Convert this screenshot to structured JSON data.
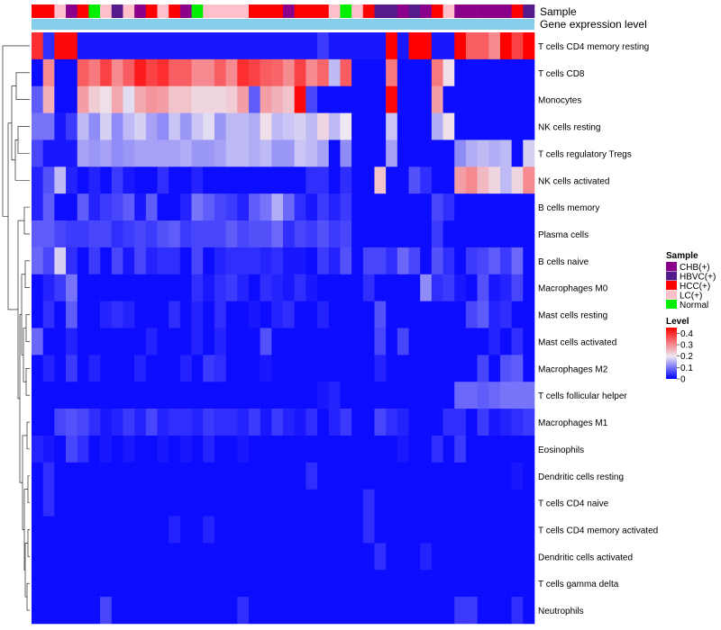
{
  "chart_data": {
    "type": "heatmap",
    "title": "",
    "annotation_rows": [
      "Sample",
      "Gene expression level"
    ],
    "rows": [
      "T cells CD4 memory resting",
      "T cells CD8",
      "Monocytes",
      "NK cells resting",
      "T cells regulatory  Tregs",
      "NK cells activated",
      "B cells memory",
      "Plasma cells",
      "B cells naive",
      "Macrophages M0",
      "Mast cells resting",
      "Mast cells activated",
      "Macrophages M2",
      "T cells follicular helper",
      "Macrophages M1",
      "Eosinophils",
      "Dendritic cells resting",
      "T cells CD4 naive",
      "T cells CD4 memory activated",
      "Dendritic cells activated",
      "T cells gamma delta",
      "Neutrophils"
    ],
    "columns": 44,
    "sample_classes": [
      "CHB(+)",
      "HBVC(+)",
      "HCC(+)",
      "LC(+)",
      "Normal"
    ],
    "sample_colors": {
      "CHB(+)": "#8B008B",
      "HBVC(+)": "#551A8B",
      "HCC(+)": "#FF0000",
      "LC(+)": "#FFC0CB",
      "Normal": "#00EE00"
    },
    "column_samples": [
      "HCC(+)",
      "HCC(+)",
      "LC(+)",
      "CHB(+)",
      "HCC(+)",
      "Normal",
      "LC(+)",
      "HBVC(+)",
      "LC(+)",
      "CHB(+)",
      "HCC(+)",
      "LC(+)",
      "HCC(+)",
      "CHB(+)",
      "Normal",
      "LC(+)",
      "LC(+)",
      "LC(+)",
      "LC(+)",
      "HCC(+)",
      "HCC(+)",
      "HCC(+)",
      "CHB(+)",
      "HCC(+)",
      "HCC(+)",
      "HCC(+)",
      "LC(+)",
      "Normal",
      "LC(+)",
      "HCC(+)",
      "HBVC(+)",
      "HBVC(+)",
      "CHB(+)",
      "HBVC(+)",
      "CHB(+)",
      "HCC(+)",
      "LC(+)",
      "CHB(+)",
      "CHB(+)",
      "CHB(+)",
      "CHB(+)",
      "CHB(+)",
      "HCC(+)",
      "HBVC(+)"
    ],
    "gene_expression_color": "#87CEEB",
    "values": [
      [
        0.4,
        0.04,
        0.44,
        0.44,
        0.02,
        0.02,
        0.02,
        0.02,
        0.02,
        0.02,
        0.02,
        0.02,
        0.02,
        0.02,
        0.02,
        0.02,
        0.02,
        0.02,
        0.02,
        0.02,
        0.02,
        0.02,
        0.02,
        0.02,
        0.02,
        0.05,
        0.02,
        0.02,
        0.02,
        0.02,
        0.02,
        0.45,
        0.02,
        0.45,
        0.45,
        0.02,
        0.02,
        0.45,
        0.35,
        0.35,
        0.3,
        0.45,
        0.38,
        0.45
      ],
      [
        0.01,
        0.3,
        0.01,
        0.01,
        0.35,
        0.32,
        0.38,
        0.3,
        0.35,
        0.42,
        0.38,
        0.4,
        0.35,
        0.35,
        0.3,
        0.3,
        0.35,
        0.3,
        0.4,
        0.38,
        0.35,
        0.34,
        0.3,
        0.38,
        0.3,
        0.34,
        0.16,
        0.35,
        0.01,
        0.01,
        0.01,
        0.32,
        0.01,
        0.01,
        0.01,
        0.32,
        0.21,
        0.01,
        0.01,
        0.01,
        0.01,
        0.01,
        0.01,
        0.01
      ],
      [
        0.08,
        0.26,
        0.01,
        0.01,
        0.28,
        0.23,
        0.21,
        0.27,
        0.19,
        0.27,
        0.29,
        0.28,
        0.24,
        0.24,
        0.22,
        0.22,
        0.22,
        0.23,
        0.28,
        0.08,
        0.28,
        0.26,
        0.24,
        0.44,
        0.06,
        0.01,
        0.01,
        0.01,
        0.01,
        0.01,
        0.01,
        0.44,
        0.01,
        0.01,
        0.01,
        0.28,
        0.01,
        0.01,
        0.01,
        0.01,
        0.01,
        0.01,
        0.01,
        0.01
      ],
      [
        0.1,
        0.1,
        0.02,
        0.05,
        0.16,
        0.12,
        0.18,
        0.12,
        0.16,
        0.18,
        0.14,
        0.12,
        0.17,
        0.13,
        0.17,
        0.19,
        0.13,
        0.16,
        0.16,
        0.15,
        0.21,
        0.16,
        0.17,
        0.18,
        0.16,
        0.22,
        0.16,
        0.2,
        0.01,
        0.01,
        0.01,
        0.17,
        0.01,
        0.01,
        0.01,
        0.15,
        0.21,
        0.01,
        0.01,
        0.01,
        0.01,
        0.01,
        0.01,
        0.01
      ],
      [
        0.06,
        0.02,
        0.02,
        0.02,
        0.14,
        0.13,
        0.14,
        0.12,
        0.13,
        0.14,
        0.14,
        0.14,
        0.14,
        0.15,
        0.13,
        0.13,
        0.14,
        0.16,
        0.16,
        0.15,
        0.16,
        0.13,
        0.13,
        0.17,
        0.16,
        0.14,
        0.01,
        0.12,
        0.01,
        0.01,
        0.01,
        0.14,
        0.01,
        0.01,
        0.01,
        0.01,
        0.01,
        0.12,
        0.15,
        0.16,
        0.15,
        0.16,
        0.01,
        0.18
      ],
      [
        0.03,
        0.07,
        0.16,
        0.03,
        0.01,
        0.03,
        0.01,
        0.05,
        0.02,
        0.01,
        0.01,
        0.04,
        0.01,
        0.01,
        0.03,
        0.01,
        0.01,
        0.01,
        0.01,
        0.01,
        0.01,
        0.01,
        0.01,
        0.01,
        0.04,
        0.04,
        0.01,
        0.04,
        0.01,
        0.01,
        0.24,
        0.01,
        0.01,
        0.07,
        0.04,
        0.01,
        0.01,
        0.28,
        0.3,
        0.25,
        0.22,
        0.16,
        0.22,
        0.3
      ],
      [
        0.03,
        0.08,
        0.01,
        0.01,
        0.08,
        0.03,
        0.05,
        0.06,
        0.08,
        0.02,
        0.08,
        0.01,
        0.01,
        0.03,
        0.1,
        0.08,
        0.06,
        0.05,
        0.03,
        0.08,
        0.1,
        0.15,
        0.09,
        0.04,
        0.02,
        0.05,
        0.03,
        0.05,
        0.01,
        0.01,
        0.01,
        0.01,
        0.01,
        0.01,
        0.01,
        0.06,
        0.04,
        0.01,
        0.01,
        0.01,
        0.01,
        0.01,
        0.01,
        0.01
      ],
      [
        0.08,
        0.08,
        0.06,
        0.05,
        0.05,
        0.06,
        0.06,
        0.04,
        0.05,
        0.06,
        0.05,
        0.07,
        0.08,
        0.05,
        0.06,
        0.06,
        0.06,
        0.08,
        0.06,
        0.07,
        0.07,
        0.09,
        0.04,
        0.06,
        0.05,
        0.07,
        0.05,
        0.06,
        0.01,
        0.01,
        0.01,
        0.01,
        0.01,
        0.01,
        0.01,
        0.05,
        0.01,
        0.01,
        0.01,
        0.01,
        0.01,
        0.01,
        0.01,
        0.01
      ],
      [
        0.09,
        0.06,
        0.18,
        0.04,
        0.01,
        0.05,
        0.01,
        0.06,
        0.02,
        0.06,
        0.03,
        0.04,
        0.04,
        0.01,
        0.06,
        0.01,
        0.03,
        0.04,
        0.04,
        0.04,
        0.03,
        0.04,
        0.02,
        0.02,
        0.01,
        0.05,
        0.03,
        0.07,
        0.01,
        0.06,
        0.06,
        0.04,
        0.09,
        0.06,
        0.01,
        0.07,
        0.04,
        0.01,
        0.05,
        0.06,
        0.08,
        0.05,
        0.09,
        0.01
      ],
      [
        0.01,
        0.03,
        0.05,
        0.1,
        0.01,
        0.01,
        0.01,
        0.01,
        0.01,
        0.01,
        0.01,
        0.01,
        0.01,
        0.01,
        0.04,
        0.02,
        0.04,
        0.05,
        0.03,
        0.01,
        0.04,
        0.03,
        0.02,
        0.04,
        0.02,
        0.01,
        0.01,
        0.01,
        0.01,
        0.04,
        0.01,
        0.01,
        0.01,
        0.01,
        0.12,
        0.04,
        0.05,
        0.02,
        0.01,
        0.07,
        0.02,
        0.03,
        0.06,
        0.01
      ],
      [
        0.01,
        0.04,
        0.01,
        0.08,
        0.01,
        0.01,
        0.03,
        0.04,
        0.03,
        0.01,
        0.01,
        0.01,
        0.04,
        0.01,
        0.03,
        0.01,
        0.04,
        0.01,
        0.01,
        0.02,
        0.01,
        0.03,
        0.04,
        0.01,
        0.01,
        0.03,
        0.01,
        0.01,
        0.01,
        0.01,
        0.07,
        0.01,
        0.01,
        0.01,
        0.01,
        0.01,
        0.01,
        0.01,
        0.06,
        0.08,
        0.03,
        0.04,
        0.01,
        0.01
      ],
      [
        0.09,
        0.01,
        0.01,
        0.03,
        0.01,
        0.01,
        0.01,
        0.01,
        0.01,
        0.01,
        0.03,
        0.01,
        0.01,
        0.01,
        0.03,
        0.01,
        0.03,
        0.01,
        0.01,
        0.01,
        0.07,
        0.01,
        0.01,
        0.01,
        0.01,
        0.01,
        0.01,
        0.01,
        0.01,
        0.01,
        0.06,
        0.01,
        0.06,
        0.01,
        0.01,
        0.01,
        0.01,
        0.01,
        0.01,
        0.01,
        0.03,
        0.01,
        0.04,
        0.01
      ],
      [
        0.01,
        0.03,
        0.01,
        0.05,
        0.01,
        0.03,
        0.01,
        0.01,
        0.01,
        0.03,
        0.01,
        0.01,
        0.01,
        0.03,
        0.01,
        0.05,
        0.04,
        0.01,
        0.01,
        0.01,
        0.02,
        0.01,
        0.01,
        0.01,
        0.01,
        0.01,
        0.01,
        0.01,
        0.01,
        0.01,
        0.03,
        0.01,
        0.01,
        0.01,
        0.01,
        0.01,
        0.01,
        0.01,
        0.01,
        0.06,
        0.01,
        0.07,
        0.08,
        0.01
      ],
      [
        0.01,
        0.01,
        0.01,
        0.01,
        0.01,
        0.01,
        0.01,
        0.01,
        0.01,
        0.01,
        0.01,
        0.01,
        0.01,
        0.01,
        0.01,
        0.01,
        0.01,
        0.01,
        0.01,
        0.01,
        0.01,
        0.01,
        0.01,
        0.01,
        0.01,
        0.02,
        0.03,
        0.01,
        0.01,
        0.01,
        0.01,
        0.01,
        0.01,
        0.01,
        0.01,
        0.01,
        0.01,
        0.09,
        0.09,
        0.08,
        0.09,
        0.1,
        0.1,
        0.1
      ],
      [
        0.01,
        0.01,
        0.06,
        0.07,
        0.06,
        0.04,
        0.02,
        0.03,
        0.05,
        0.03,
        0.06,
        0.03,
        0.04,
        0.04,
        0.03,
        0.05,
        0.04,
        0.04,
        0.03,
        0.05,
        0.02,
        0.05,
        0.03,
        0.02,
        0.04,
        0.01,
        0.03,
        0.05,
        0.01,
        0.01,
        0.06,
        0.04,
        0.03,
        0.01,
        0.01,
        0.01,
        0.04,
        0.04,
        0.01,
        0.05,
        0.02,
        0.03,
        0.04,
        0.05
      ],
      [
        0.03,
        0.02,
        0.01,
        0.06,
        0.04,
        0.01,
        0.02,
        0.01,
        0.02,
        0.01,
        0.01,
        0.02,
        0.01,
        0.02,
        0.01,
        0.03,
        0.01,
        0.01,
        0.02,
        0.01,
        0.01,
        0.01,
        0.01,
        0.01,
        0.01,
        0.01,
        0.01,
        0.01,
        0.01,
        0.01,
        0.01,
        0.01,
        0.02,
        0.01,
        0.01,
        0.04,
        0.01,
        0.05,
        0.01,
        0.01,
        0.01,
        0.01,
        0.01,
        0.01
      ],
      [
        0.01,
        0.04,
        0.01,
        0.01,
        0.01,
        0.01,
        0.01,
        0.01,
        0.01,
        0.01,
        0.01,
        0.01,
        0.01,
        0.01,
        0.01,
        0.01,
        0.01,
        0.01,
        0.01,
        0.01,
        0.01,
        0.01,
        0.01,
        0.01,
        0.04,
        0.01,
        0.01,
        0.01,
        0.01,
        0.01,
        0.01,
        0.01,
        0.01,
        0.01,
        0.01,
        0.01,
        0.01,
        0.01,
        0.01,
        0.01,
        0.01,
        0.01,
        0.02,
        0.01
      ],
      [
        0.01,
        0.04,
        0.01,
        0.01,
        0.01,
        0.01,
        0.01,
        0.01,
        0.01,
        0.01,
        0.01,
        0.01,
        0.01,
        0.01,
        0.01,
        0.01,
        0.01,
        0.01,
        0.01,
        0.01,
        0.01,
        0.01,
        0.01,
        0.01,
        0.01,
        0.01,
        0.01,
        0.01,
        0.01,
        0.04,
        0.01,
        0.01,
        0.01,
        0.01,
        0.01,
        0.01,
        0.01,
        0.01,
        0.01,
        0.01,
        0.01,
        0.01,
        0.01,
        0.01
      ],
      [
        0.01,
        0.01,
        0.01,
        0.01,
        0.01,
        0.01,
        0.01,
        0.01,
        0.01,
        0.01,
        0.01,
        0.01,
        0.03,
        0.01,
        0.01,
        0.03,
        0.01,
        0.01,
        0.01,
        0.01,
        0.01,
        0.01,
        0.01,
        0.01,
        0.01,
        0.01,
        0.01,
        0.01,
        0.01,
        0.04,
        0.01,
        0.01,
        0.01,
        0.01,
        0.01,
        0.01,
        0.01,
        0.01,
        0.01,
        0.01,
        0.01,
        0.01,
        0.01,
        0.01
      ],
      [
        0.01,
        0.01,
        0.01,
        0.01,
        0.01,
        0.01,
        0.01,
        0.01,
        0.01,
        0.01,
        0.01,
        0.01,
        0.01,
        0.01,
        0.01,
        0.01,
        0.01,
        0.01,
        0.01,
        0.01,
        0.01,
        0.01,
        0.01,
        0.01,
        0.01,
        0.01,
        0.01,
        0.01,
        0.01,
        0.01,
        0.04,
        0.01,
        0.01,
        0.01,
        0.03,
        0.01,
        0.01,
        0.01,
        0.01,
        0.01,
        0.01,
        0.01,
        0.01,
        0.01
      ],
      [
        0.01,
        0.01,
        0.01,
        0.01,
        0.01,
        0.01,
        0.01,
        0.01,
        0.01,
        0.01,
        0.01,
        0.01,
        0.01,
        0.01,
        0.01,
        0.01,
        0.01,
        0.01,
        0.01,
        0.01,
        0.01,
        0.01,
        0.01,
        0.01,
        0.01,
        0.01,
        0.01,
        0.01,
        0.01,
        0.01,
        0.01,
        0.01,
        0.01,
        0.01,
        0.01,
        0.01,
        0.01,
        0.01,
        0.01,
        0.01,
        0.01,
        0.01,
        0.01,
        0.01
      ],
      [
        0.01,
        0.01,
        0.01,
        0.01,
        0.01,
        0.01,
        0.06,
        0.01,
        0.01,
        0.01,
        0.01,
        0.01,
        0.01,
        0.01,
        0.01,
        0.01,
        0.01,
        0.01,
        0.04,
        0.01,
        0.01,
        0.01,
        0.01,
        0.01,
        0.01,
        0.01,
        0.01,
        0.01,
        0.01,
        0.01,
        0.01,
        0.01,
        0.01,
        0.01,
        0.01,
        0.01,
        0.01,
        0.05,
        0.05,
        0.01,
        0.01,
        0.01,
        0.04,
        0.01
      ]
    ],
    "color_scale": {
      "min": 0,
      "max": 0.45,
      "stops": [
        {
          "value": 0,
          "color": "#0000FF"
        },
        {
          "value": 0.2,
          "color": "#EEE8F2"
        },
        {
          "value": 0.45,
          "color": "#FF0000"
        }
      ]
    },
    "legend": {
      "sample_title": "Sample",
      "level_title": "Level",
      "level_ticks": [
        "0.4",
        "0.3",
        "0.2",
        "0.1",
        "0"
      ],
      "level_tick_values": [
        0.4,
        0.3,
        0.2,
        0.1,
        0
      ],
      "placement": "right"
    },
    "dendrogram": "rows"
  }
}
